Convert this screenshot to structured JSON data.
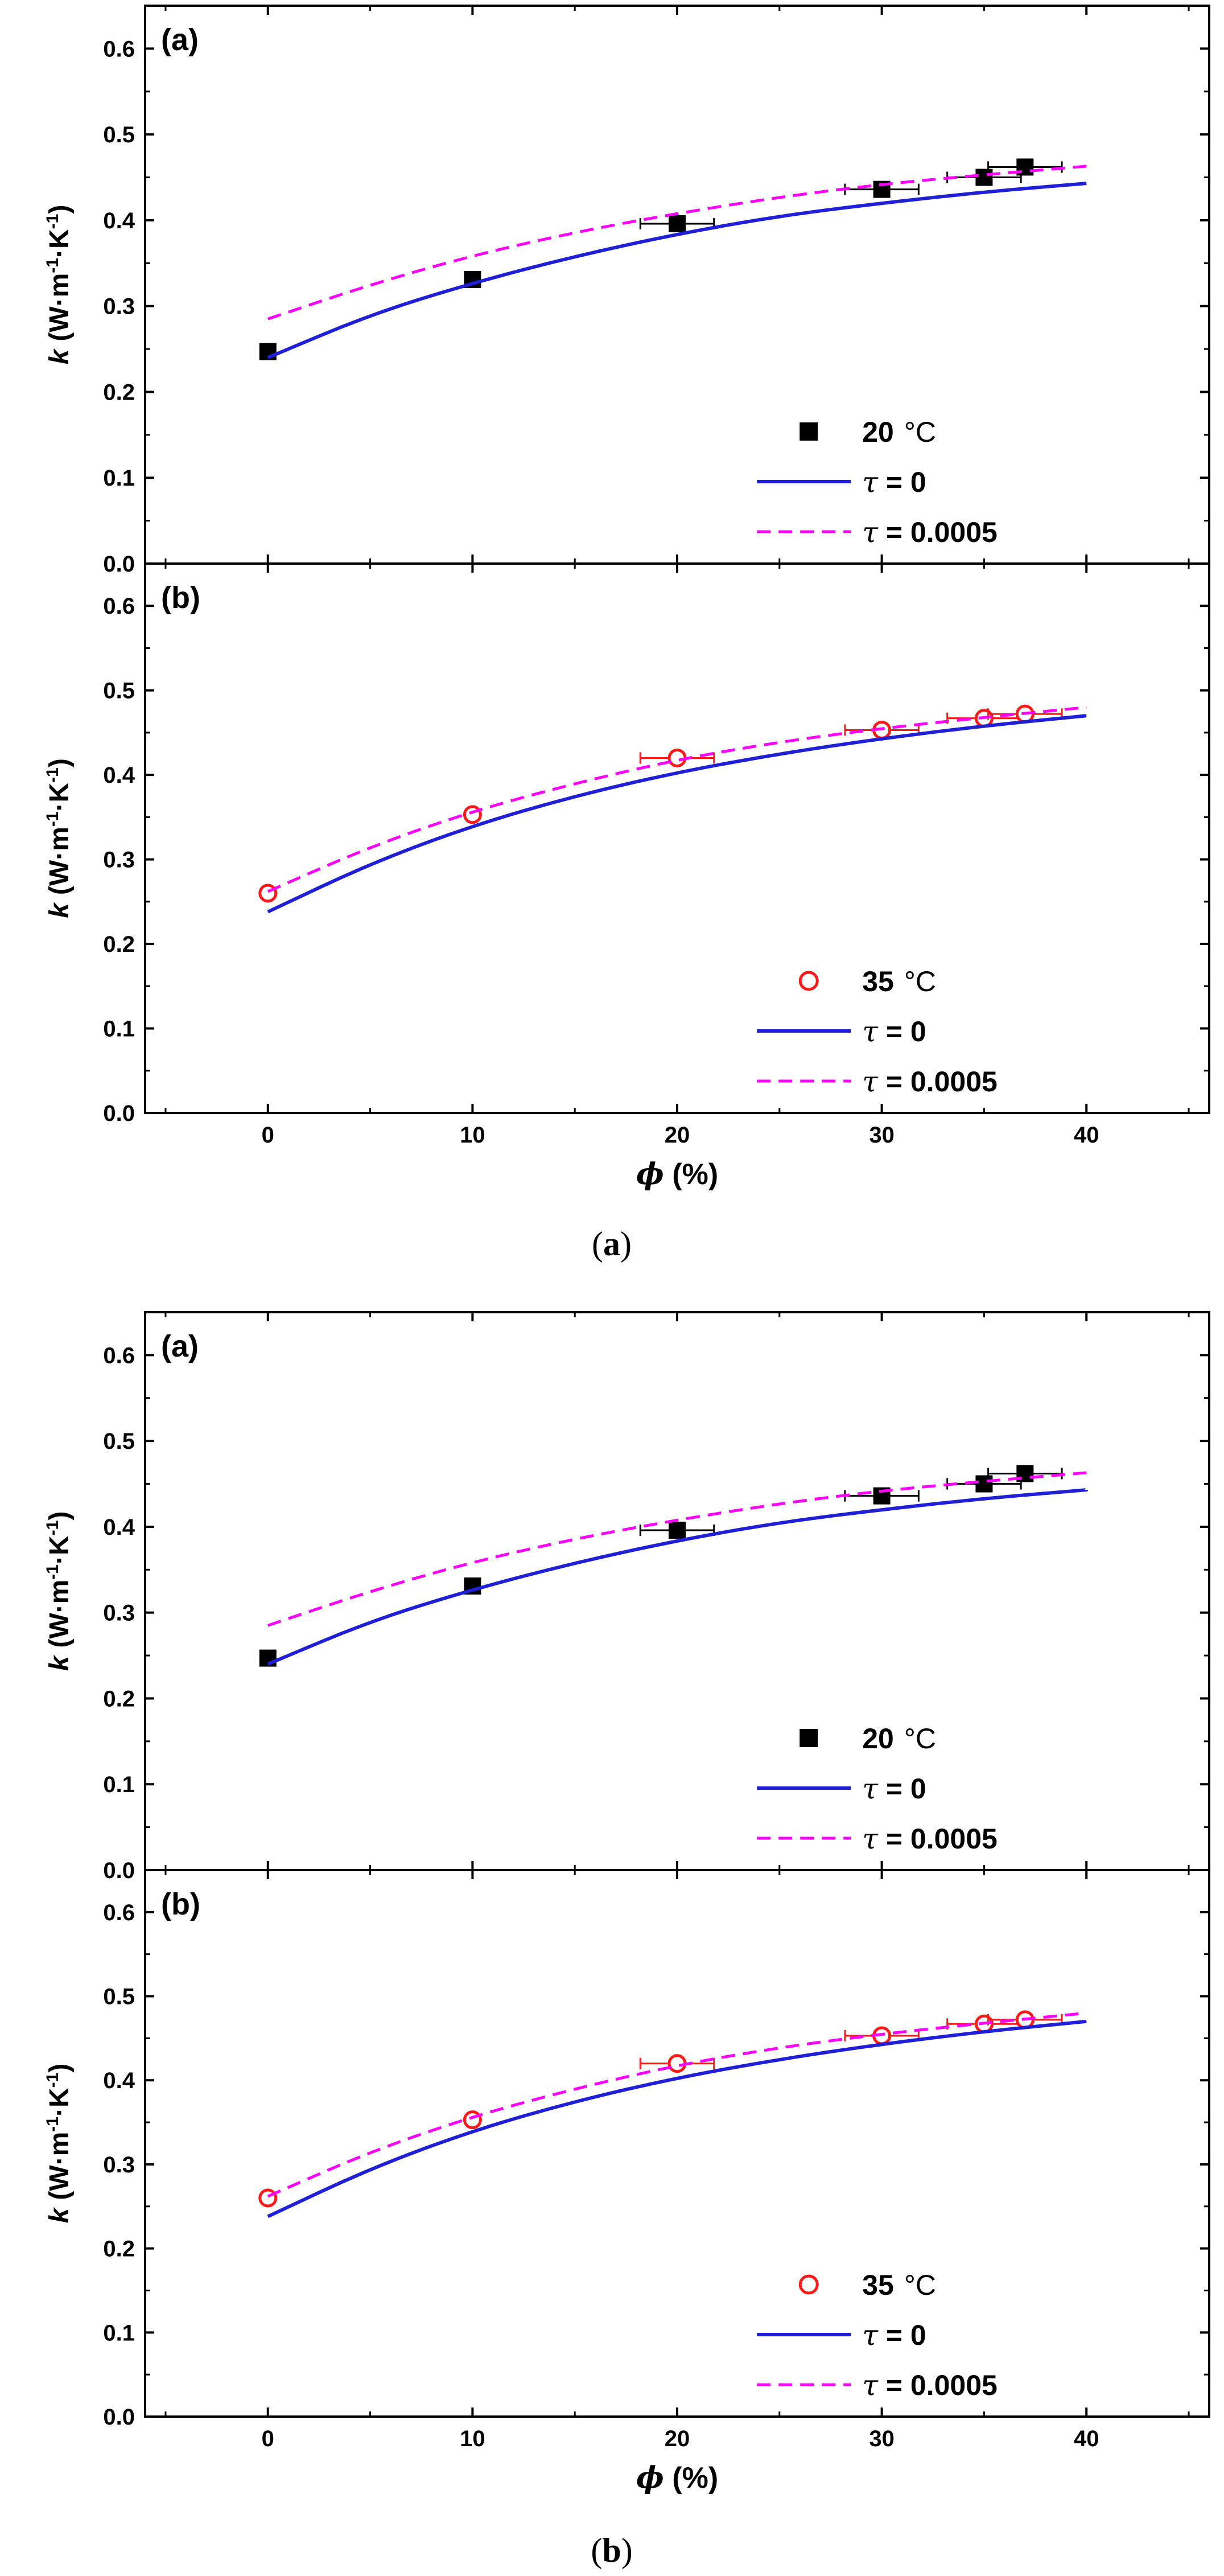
{
  "figure_captions": [
    "(",
    "a",
    ")",
    "(",
    "b",
    ")"
  ],
  "colors": {
    "model_tau0": "#1f1fd6",
    "model_tau0005": "#ff00ff",
    "data_20C": "#000000",
    "data_35C": "#ff1a1a",
    "axis": "#000000"
  },
  "chart_data": [
    {
      "type": "line",
      "figure": "(a)",
      "panel_label": "(a)",
      "xlabel": "",
      "ylabel": "k (W·m⁻¹·K⁻¹)",
      "ylabel_parts": {
        "k": "k",
        "unit_open": "(W·m",
        "exp1": "-1",
        "mid": "·K",
        "exp2": "-1",
        "unit_close": ")"
      },
      "xlim": [
        -6,
        46
      ],
      "ylim": [
        0,
        0.65
      ],
      "xticks": [
        0,
        10,
        20,
        30,
        40
      ],
      "xtick_labels": [
        "0",
        "10",
        "20",
        "30",
        "40"
      ],
      "yticks": [
        0.0,
        0.1,
        0.2,
        0.3,
        0.4,
        0.5,
        0.6
      ],
      "ytick_labels": [
        "0.0",
        "0.1",
        "0.2",
        "0.3",
        "0.4",
        "0.5",
        "0.6"
      ],
      "show_xtick_labels": false,
      "legend_position": "bottom-right",
      "series": [
        {
          "name": "20 °C",
          "name_parts": {
            "num": "20",
            "unit": "°C"
          },
          "kind": "scatter",
          "marker": "filled-square",
          "color": "#000000",
          "x": [
            0,
            10,
            20,
            30,
            35,
            37
          ],
          "y": [
            0.247,
            0.331,
            0.396,
            0.436,
            0.45,
            0.462
          ],
          "xerr": [
            0,
            0,
            0.6,
            0.6,
            0.6,
            0.6
          ]
        },
        {
          "name": "τ = 0",
          "name_parts": {
            "sym": "τ",
            "rest": " = 0"
          },
          "kind": "line",
          "style": "solid",
          "color": "#1f1fd6",
          "x": [
            0,
            5,
            10,
            15,
            20,
            25,
            30,
            35,
            40
          ],
          "y": [
            0.24,
            0.29,
            0.327,
            0.358,
            0.384,
            0.405,
            0.42,
            0.433,
            0.443
          ]
        },
        {
          "name": "τ = 0.0005",
          "name_parts": {
            "sym": "τ",
            "rest": " = 0.0005"
          },
          "kind": "line",
          "style": "dashed",
          "color": "#ff00ff",
          "x": [
            0,
            5,
            10,
            15,
            20,
            25,
            30,
            35,
            40
          ],
          "y": [
            0.285,
            0.325,
            0.359,
            0.386,
            0.408,
            0.427,
            0.442,
            0.453,
            0.463
          ]
        }
      ]
    },
    {
      "type": "line",
      "figure": "(a)",
      "panel_label": "(b)",
      "xlabel": "ϕ (%)",
      "xlabel_parts": {
        "sym": "ϕ",
        "rest": "  (%)"
      },
      "ylabel": "k (W·m⁻¹·K⁻¹)",
      "ylabel_parts": {
        "k": "k",
        "unit_open": "(W·m",
        "exp1": "-1",
        "mid": "·K",
        "exp2": "-1",
        "unit_close": ")"
      },
      "xlim": [
        -6,
        46
      ],
      "ylim": [
        0,
        0.65
      ],
      "xticks": [
        0,
        10,
        20,
        30,
        40
      ],
      "xtick_labels": [
        "0",
        "10",
        "20",
        "30",
        "40"
      ],
      "yticks": [
        0.0,
        0.1,
        0.2,
        0.3,
        0.4,
        0.5,
        0.6
      ],
      "ytick_labels": [
        "0.0",
        "0.1",
        "0.2",
        "0.3",
        "0.4",
        "0.5",
        "0.6"
      ],
      "show_xtick_labels": true,
      "legend_position": "bottom-right",
      "series": [
        {
          "name": "35 °C",
          "name_parts": {
            "num": "35",
            "unit": "°C"
          },
          "kind": "scatter",
          "marker": "open-circle",
          "color": "#ff1a1a",
          "x": [
            0,
            10,
            20,
            30,
            35,
            37
          ],
          "y": [
            0.26,
            0.353,
            0.42,
            0.453,
            0.467,
            0.472
          ],
          "xerr": [
            0,
            0,
            0.6,
            0.6,
            0.6,
            0.6
          ]
        },
        {
          "name": "τ = 0",
          "name_parts": {
            "sym": "τ",
            "rest": " = 0"
          },
          "kind": "line",
          "style": "solid",
          "color": "#1f1fd6",
          "x": [
            0,
            5,
            10,
            15,
            20,
            25,
            30,
            35,
            40
          ],
          "y": [
            0.238,
            0.295,
            0.34,
            0.375,
            0.403,
            0.425,
            0.443,
            0.458,
            0.47
          ]
        },
        {
          "name": "τ = 0.0005",
          "name_parts": {
            "sym": "τ",
            "rest": " = 0.0005"
          },
          "kind": "line",
          "style": "dashed",
          "color": "#ff00ff",
          "x": [
            0,
            5,
            10,
            15,
            20,
            25,
            30,
            35,
            40
          ],
          "y": [
            0.262,
            0.315,
            0.357,
            0.39,
            0.418,
            0.439,
            0.455,
            0.468,
            0.48
          ]
        }
      ]
    },
    {
      "type": "line",
      "figure": "(b)",
      "panel_label": "(a)",
      "xlabel": "",
      "ylabel": "k (W·m⁻¹·K⁻¹)",
      "ylabel_parts": {
        "k": "k",
        "unit_open": "(W·m",
        "exp1": "-1",
        "mid": "·K",
        "exp2": "-1",
        "unit_close": ")"
      },
      "xlim": [
        -6,
        46
      ],
      "ylim": [
        0,
        0.65
      ],
      "xticks": [
        0,
        10,
        20,
        30,
        40
      ],
      "xtick_labels": [
        "0",
        "10",
        "20",
        "30",
        "40"
      ],
      "yticks": [
        0.0,
        0.1,
        0.2,
        0.3,
        0.4,
        0.5,
        0.6
      ],
      "ytick_labels": [
        "0.0",
        "0.1",
        "0.2",
        "0.3",
        "0.4",
        "0.5",
        "0.6"
      ],
      "show_xtick_labels": false,
      "legend_position": "bottom-right",
      "series": [
        {
          "name": "20 °C",
          "name_parts": {
            "num": "20",
            "unit": "°C"
          },
          "kind": "scatter",
          "marker": "filled-square",
          "color": "#000000",
          "x": [
            0,
            10,
            20,
            30,
            35,
            37
          ],
          "y": [
            0.247,
            0.331,
            0.396,
            0.436,
            0.45,
            0.462
          ],
          "xerr": [
            0,
            0,
            0.6,
            0.6,
            0.6,
            0.6
          ]
        },
        {
          "name": "τ = 0",
          "name_parts": {
            "sym": "τ",
            "rest": " = 0"
          },
          "kind": "line",
          "style": "solid",
          "color": "#1f1fd6",
          "x": [
            0,
            5,
            10,
            15,
            20,
            25,
            30,
            35,
            40
          ],
          "y": [
            0.24,
            0.29,
            0.327,
            0.358,
            0.384,
            0.405,
            0.42,
            0.433,
            0.443
          ]
        },
        {
          "name": "τ = 0.0005",
          "name_parts": {
            "sym": "τ",
            "rest": " = 0.0005"
          },
          "kind": "line",
          "style": "dashed",
          "color": "#ff00ff",
          "x": [
            0,
            5,
            10,
            15,
            20,
            25,
            30,
            35,
            40
          ],
          "y": [
            0.285,
            0.325,
            0.359,
            0.386,
            0.408,
            0.427,
            0.442,
            0.453,
            0.463
          ]
        }
      ]
    },
    {
      "type": "line",
      "figure": "(b)",
      "panel_label": "(b)",
      "xlabel": "ϕ (%)",
      "xlabel_parts": {
        "sym": "ϕ",
        "rest": "  (%)"
      },
      "ylabel": "k (W·m⁻¹·K⁻¹)",
      "ylabel_parts": {
        "k": "k",
        "unit_open": "(W·m",
        "exp1": "-1",
        "mid": "·K",
        "exp2": "-1",
        "unit_close": ")"
      },
      "xlim": [
        -6,
        46
      ],
      "ylim": [
        0,
        0.65
      ],
      "xticks": [
        0,
        10,
        20,
        30,
        40
      ],
      "xtick_labels": [
        "0",
        "10",
        "20",
        "30",
        "40"
      ],
      "yticks": [
        0.0,
        0.1,
        0.2,
        0.3,
        0.4,
        0.5,
        0.6
      ],
      "ytick_labels": [
        "0.0",
        "0.1",
        "0.2",
        "0.3",
        "0.4",
        "0.5",
        "0.6"
      ],
      "show_xtick_labels": true,
      "legend_position": "bottom-right",
      "series": [
        {
          "name": "35 °C",
          "name_parts": {
            "num": "35",
            "unit": "°C"
          },
          "kind": "scatter",
          "marker": "open-circle",
          "color": "#ff1a1a",
          "x": [
            0,
            10,
            20,
            30,
            35,
            37
          ],
          "y": [
            0.26,
            0.353,
            0.42,
            0.453,
            0.467,
            0.472
          ],
          "xerr": [
            0,
            0,
            0.6,
            0.6,
            0.6,
            0.6
          ]
        },
        {
          "name": "τ = 0",
          "name_parts": {
            "sym": "τ",
            "rest": " = 0"
          },
          "kind": "line",
          "style": "solid",
          "color": "#1f1fd6",
          "x": [
            0,
            5,
            10,
            15,
            20,
            25,
            30,
            35,
            40
          ],
          "y": [
            0.238,
            0.295,
            0.34,
            0.375,
            0.403,
            0.425,
            0.443,
            0.458,
            0.47
          ]
        },
        {
          "name": "τ = 0.0005",
          "name_parts": {
            "sym": "τ",
            "rest": " = 0.0005"
          },
          "kind": "line",
          "style": "dashed",
          "color": "#ff00ff",
          "x": [
            0,
            5,
            10,
            15,
            20,
            25,
            30,
            35,
            40
          ],
          "y": [
            0.262,
            0.315,
            0.357,
            0.39,
            0.418,
            0.439,
            0.455,
            0.468,
            0.48
          ]
        }
      ]
    }
  ]
}
